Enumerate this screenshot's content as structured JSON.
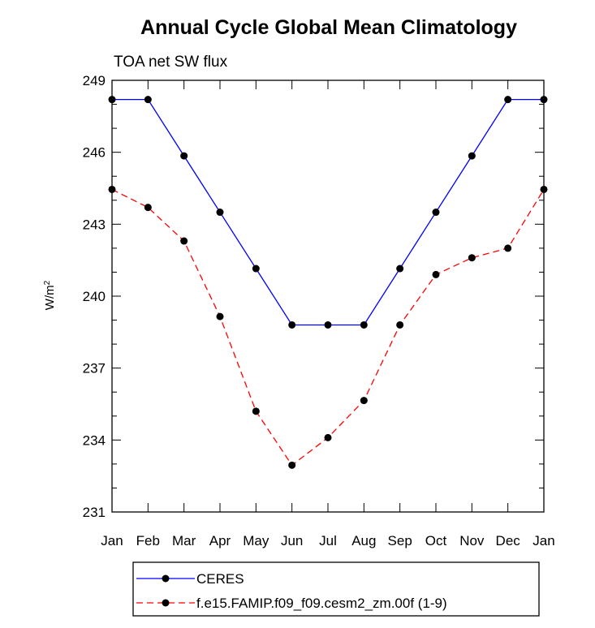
{
  "chart_data": {
    "type": "line",
    "title": "Annual Cycle Global Mean Climatology",
    "subtitle": "TOA net SW flux",
    "ylabel": {
      "base": "W/m",
      "sup": "2"
    },
    "categories": [
      "Jan",
      "Feb",
      "Mar",
      "Apr",
      "May",
      "Jun",
      "Jul",
      "Aug",
      "Sep",
      "Oct",
      "Nov",
      "Dec",
      "Jan"
    ],
    "ylim": [
      231,
      249
    ],
    "yticks": [
      "231",
      "234",
      "237",
      "240",
      "243",
      "246",
      "249"
    ],
    "series": [
      {
        "name": "CERES",
        "color": "#0000ff",
        "dash": "solid",
        "marker": "circle",
        "values": [
          248.2,
          248.2,
          245.85,
          243.5,
          241.15,
          238.8,
          238.8,
          238.8,
          241.15,
          243.5,
          245.85,
          248.2,
          248.2
        ]
      },
      {
        "name": "f.e15.FAMIP.f09_f09.cesm2_zm.00f (1-9)",
        "color": "#ff0000",
        "dash": "dashed",
        "marker": "circle",
        "values": [
          244.45,
          243.7,
          242.3,
          239.15,
          235.2,
          232.95,
          234.1,
          235.65,
          238.8,
          240.9,
          241.6,
          242.0,
          244.45
        ]
      }
    ],
    "legend_position": "bottom"
  }
}
